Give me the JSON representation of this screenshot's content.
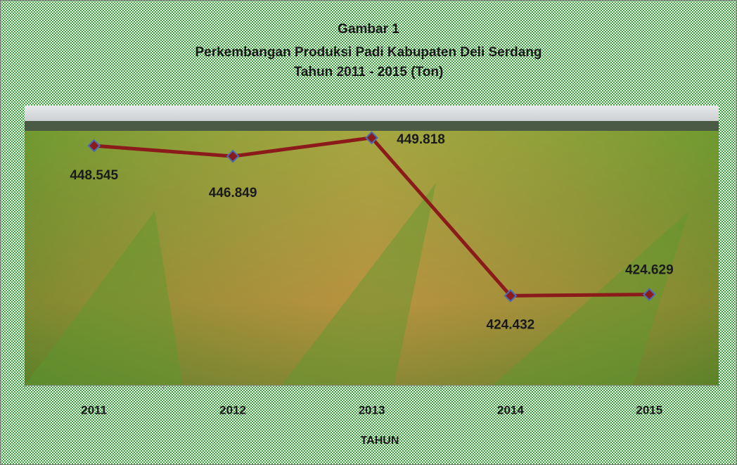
{
  "chart_data": {
    "type": "line",
    "title": [
      "Gambar 1",
      "Perkembangan Produksi Padi Kabupaten Deli Serdang",
      "Tahun 2011 - 2015 (Ton)"
    ],
    "xlabel": "TAHUN",
    "categories": [
      "2011",
      "2012",
      "2013",
      "2014",
      "2015"
    ],
    "values": [
      448545,
      446849,
      449818,
      424432,
      424629
    ],
    "value_labels": [
      "448.545",
      "446.849",
      "449.818",
      "424.432",
      "424.629"
    ],
    "color": "#8b1a1a",
    "marker_color": "#4a6bb5",
    "ylim": [
      410000,
      455000
    ]
  }
}
